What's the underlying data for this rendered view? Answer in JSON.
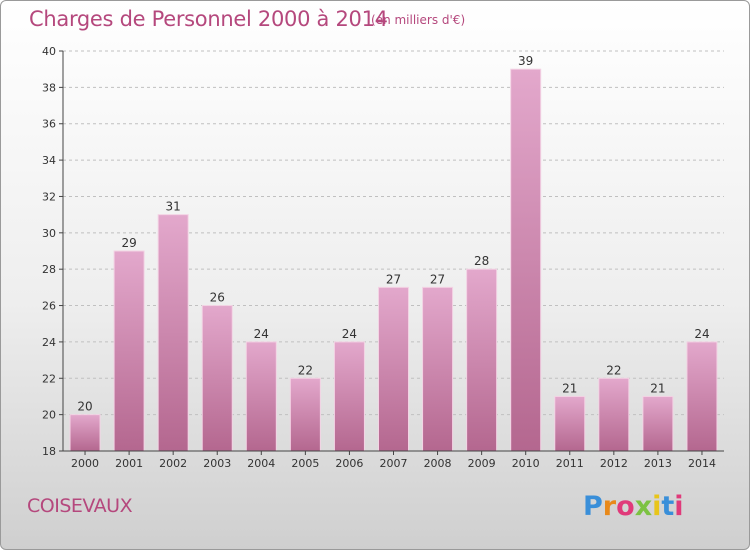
{
  "header": {
    "title": "Charges de Personnel 2000 à 2014",
    "subtitle": "(en milliers d'€)"
  },
  "footer": {
    "place_name": "COISEVAUX",
    "logo_text": "Proxiti",
    "logo_colors": [
      "#3a8fd9",
      "#e8891a",
      "#e03a7a",
      "#7cc242",
      "#e8c51a",
      "#3a8fd9",
      "#e03a7a"
    ]
  },
  "colors": {
    "bar_top": "#e3a8cc",
    "bar_bottom": "#b4678f",
    "text_accent": "#b5487d",
    "axis": "#444444",
    "grid": "#c0c0c0"
  },
  "chart_data": {
    "type": "bar",
    "title": "Charges de Personnel 2000 à 2014",
    "subtitle": "(en milliers d'€)",
    "categories": [
      "2000",
      "2001",
      "2002",
      "2003",
      "2004",
      "2005",
      "2006",
      "2007",
      "2008",
      "2009",
      "2010",
      "2011",
      "2012",
      "2013",
      "2014"
    ],
    "values": [
      20,
      29,
      31,
      26,
      24,
      22,
      24,
      27,
      27,
      28,
      39,
      21,
      22,
      21,
      24
    ],
    "ylim": [
      18,
      40
    ],
    "yticks": [
      18,
      20,
      22,
      24,
      26,
      28,
      30,
      32,
      34,
      36,
      38,
      40
    ],
    "grid": true,
    "data_labels": true
  }
}
